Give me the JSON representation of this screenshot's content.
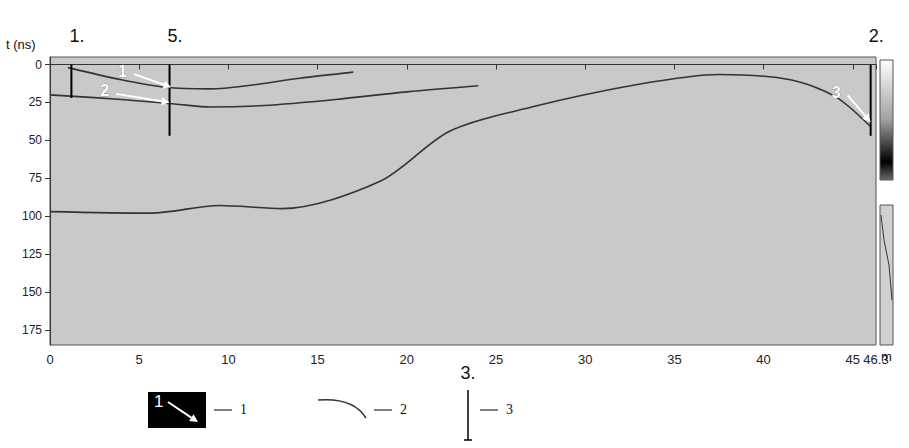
{
  "chart_data": {
    "type": "line",
    "y_label": "t (ns)",
    "x_label": "m",
    "xlim": [
      0,
      46.3
    ],
    "xticks": [
      0,
      5,
      10,
      15,
      20,
      25,
      30,
      35,
      40,
      45
    ],
    "ylim": [
      -5,
      185
    ],
    "yticks": [
      0,
      25,
      50,
      75,
      100,
      125,
      150,
      175
    ],
    "grid": false,
    "series": [
      {
        "color": "#333333",
        "line_style": "solid",
        "x": [
          1,
          4,
          6.5,
          9,
          11,
          14,
          17
        ],
        "values": [
          2,
          10,
          15,
          16,
          14,
          9,
          5
        ]
      },
      {
        "color": "#333333",
        "line_style": "solid",
        "x": [
          0,
          4,
          7,
          9,
          12,
          16,
          20,
          24
        ],
        "values": [
          20,
          23,
          26,
          28,
          27,
          23,
          18,
          14
        ]
      },
      {
        "color": "#333333",
        "line_style": "solid",
        "x": [
          0,
          5.6,
          9.5,
          13,
          18.5,
          22.4,
          27,
          33,
          37.5,
          41.5,
          44,
          46
        ],
        "values": [
          97,
          98,
          93,
          95,
          77,
          44,
          28,
          13,
          6.5,
          10,
          21,
          41
        ]
      }
    ],
    "markers": [
      {
        "label": "1.",
        "x": 1.2,
        "values": [
          0,
          22
        ]
      },
      {
        "label": "5.",
        "x": 6.7,
        "values": [
          0,
          47
        ]
      },
      {
        "label": "2.",
        "x": 46.0,
        "values": [
          0,
          47
        ]
      }
    ],
    "annotations": [
      {
        "text": "1",
        "x": 4.6,
        "y": 5,
        "to": [
          6.8,
          15
        ]
      },
      {
        "text": "2",
        "x": 3.6,
        "y": 18,
        "to": [
          6.7,
          25
        ]
      },
      {
        "text": "3",
        "x": 44.6,
        "y": 19,
        "to": [
          46.0,
          38
        ]
      }
    ],
    "key": {
      "title": "3.",
      "items": [
        {
          "marker": "arrow",
          "sample_text": "1",
          "label": "1"
        },
        {
          "marker": "curve",
          "label": "2"
        },
        {
          "marker": "bar",
          "label": "3"
        }
      ]
    }
  }
}
